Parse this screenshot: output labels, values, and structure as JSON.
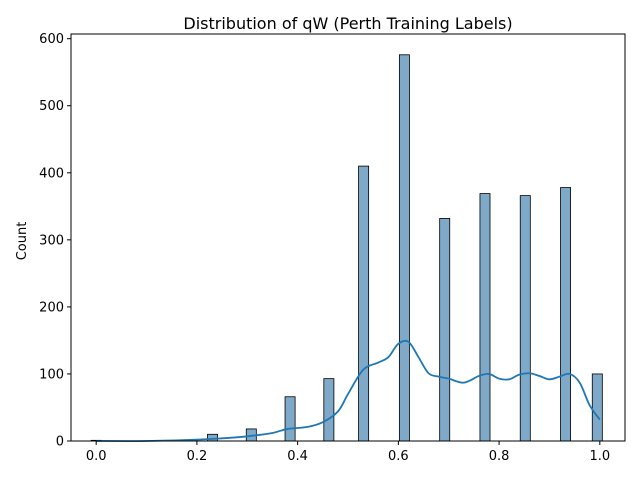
{
  "chart_data": {
    "type": "bar",
    "title": "Distribution of qW (Perth Training Labels)",
    "xlabel": "",
    "ylabel": "Count",
    "xlim": [
      -0.05,
      1.05
    ],
    "ylim": [
      0,
      607
    ],
    "xticks": [
      "0.0",
      "0.2",
      "0.4",
      "0.6",
      "0.8",
      "1.0"
    ],
    "yticks": [
      "0",
      "100",
      "200",
      "300",
      "400",
      "500",
      "600"
    ],
    "bin_width": 0.02,
    "bars": [
      {
        "x": 0.0,
        "value": 1
      },
      {
        "x": 0.231,
        "value": 10
      },
      {
        "x": 0.308,
        "value": 18
      },
      {
        "x": 0.385,
        "value": 66
      },
      {
        "x": 0.462,
        "value": 93
      },
      {
        "x": 0.531,
        "value": 410
      },
      {
        "x": 0.612,
        "value": 576
      },
      {
        "x": 0.692,
        "value": 332
      },
      {
        "x": 0.772,
        "value": 369
      },
      {
        "x": 0.852,
        "value": 366
      },
      {
        "x": 0.932,
        "value": 378
      },
      {
        "x": 0.995,
        "value": 100
      }
    ],
    "kde": {
      "x": [
        0.0,
        0.1,
        0.2,
        0.25,
        0.3,
        0.35,
        0.38,
        0.42,
        0.45,
        0.48,
        0.5,
        0.53,
        0.56,
        0.58,
        0.6,
        0.62,
        0.64,
        0.66,
        0.68,
        0.7,
        0.73,
        0.76,
        0.78,
        0.8,
        0.82,
        0.84,
        0.86,
        0.88,
        0.9,
        0.92,
        0.94,
        0.96,
        0.98,
        1.0
      ],
      "y": [
        0,
        0,
        2,
        4,
        7,
        12,
        18,
        21,
        28,
        44,
        70,
        106,
        117,
        125,
        145,
        148,
        125,
        101,
        96,
        93,
        87,
        97,
        100,
        93,
        92,
        99,
        101,
        97,
        92,
        96,
        100,
        87,
        53,
        32
      ]
    },
    "colors": {
      "bar_fill": "#7ea9c9",
      "bar_edge": "#000000",
      "kde_line": "#1f77b4"
    },
    "grid": false,
    "legend": "none"
  }
}
